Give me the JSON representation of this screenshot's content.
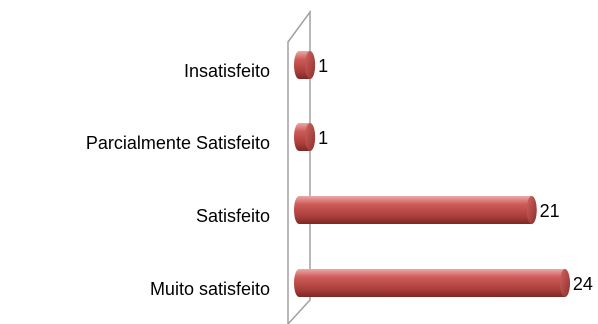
{
  "chart_data": {
    "type": "bar",
    "orientation": "horizontal",
    "style": "3d-cylinder",
    "categories": [
      "Insatisfeito",
      "Parcialmente Satisfeito",
      "Satisfeito",
      "Muito satisfeito"
    ],
    "values": [
      1,
      1,
      21,
      24
    ],
    "data_labels": [
      "1",
      "1",
      "21",
      "24"
    ],
    "title": "",
    "xlabel": "",
    "ylabel": "",
    "xlim": [
      0,
      24
    ],
    "grid": false,
    "legend": "none",
    "bar_color": "#c0504d",
    "wall_color": "#a6a6a6"
  }
}
